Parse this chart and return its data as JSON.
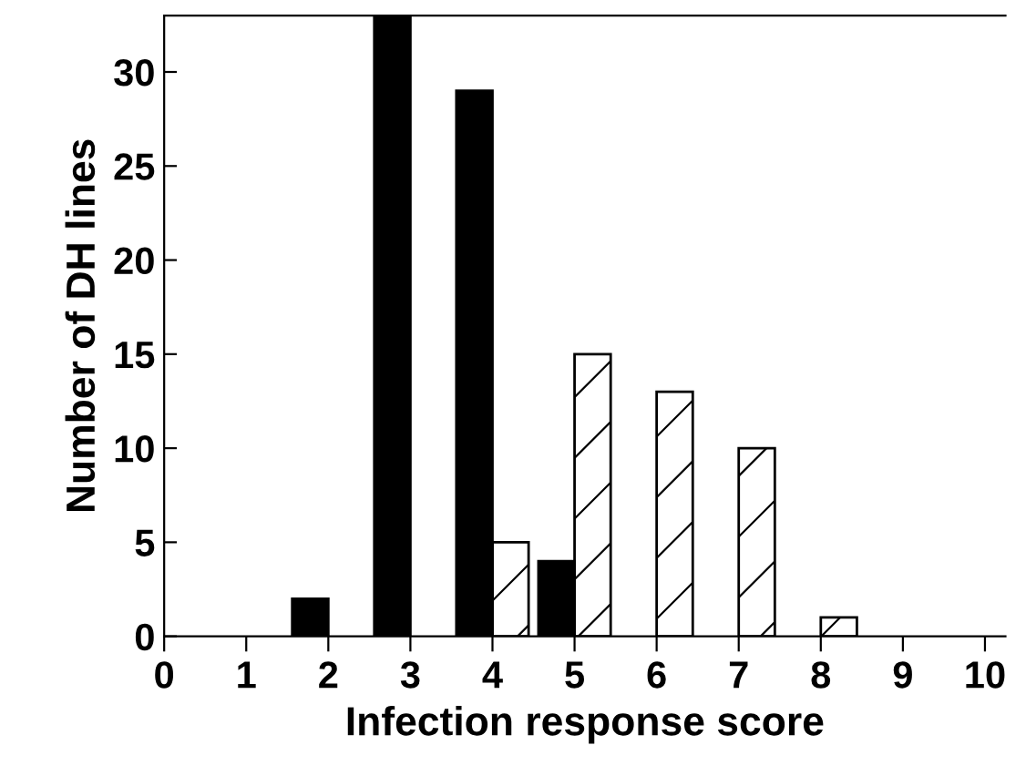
{
  "chart_data": {
    "type": "bar",
    "xlabel": "Infection response score",
    "ylabel": "Number of DH lines",
    "x": [
      2,
      3,
      4,
      5,
      6,
      7,
      8
    ],
    "series": [
      {
        "color": "#000000",
        "values": [
          2,
          33,
          29,
          4,
          null,
          null,
          null
        ]
      },
      {
        "color": "#ffffff",
        "values": [
          null,
          null,
          5,
          15,
          13,
          10,
          1
        ]
      }
    ],
    "xlim": [
      0,
      10.25
    ],
    "xticks": [
      0,
      1,
      2,
      3,
      4,
      5,
      6,
      7,
      8,
      9,
      10
    ],
    "ylim": [
      0,
      33
    ],
    "yticks": [
      0,
      5,
      10,
      15,
      20,
      25,
      30
    ],
    "grid": false,
    "legend": false
  }
}
